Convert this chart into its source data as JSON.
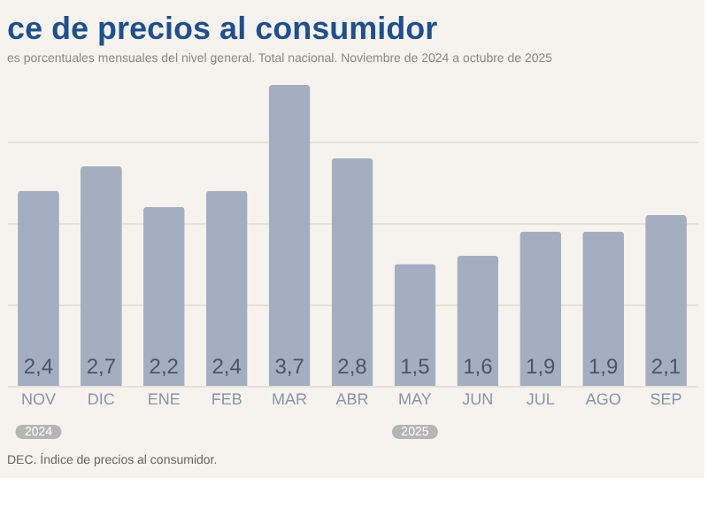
{
  "chart_data": {
    "type": "bar",
    "title": "ce de precios al consumidor",
    "subtitle": "es porcentuales mensuales del nivel general. Total nacional. Noviembre de 2024 a octubre de 2025",
    "categories": [
      "NOV",
      "DIC",
      "ENE",
      "FEB",
      "MAR",
      "ABR",
      "MAY",
      "JUN",
      "JUL",
      "AGO",
      "SEP"
    ],
    "values": [
      2.4,
      2.7,
      2.2,
      2.4,
      3.7,
      2.8,
      1.5,
      1.6,
      1.9,
      1.9,
      2.1
    ],
    "value_labels": [
      "2,4",
      "2,7",
      "2,2",
      "2,4",
      "3,7",
      "2,8",
      "1,5",
      "1,6",
      "1,9",
      "1,9",
      "2,1"
    ],
    "color": "#a3afc1",
    "grid": "y",
    "tick_labels": "x",
    "annotations": [
      "2024",
      "2025",
      "DEC. Índice de precios al consumidor."
    ]
  }
}
